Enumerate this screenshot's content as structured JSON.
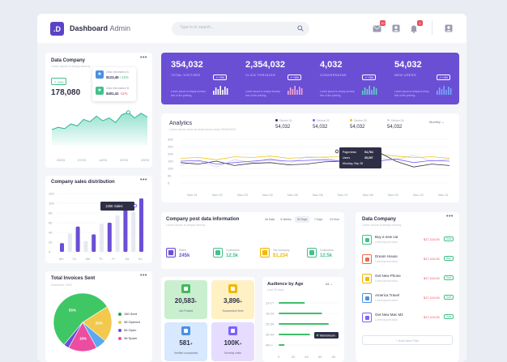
{
  "header": {
    "logo_text": ".D",
    "title_bold": "Dashboard",
    "title_light": "Admin",
    "search_placeholder": "Type in to search...",
    "badge_mail": "10",
    "badge_bell": "2"
  },
  "data_company_chart": {
    "title": "Data Company",
    "subtitle": "Lorem ipsum is simply dummy",
    "chip": "23%",
    "value": "178,080",
    "info1_title": "Data information A",
    "info1_value": "$123,45",
    "info1_delta": "+15%",
    "info2_title": "Data information B",
    "info2_value": "$401,41",
    "info2_delta": "-11%",
    "x_labels": [
      "20/03",
      "07/03",
      "14/03",
      "22/03",
      "29/03"
    ],
    "values": [
      33,
      38,
      35,
      45,
      41,
      55,
      50,
      62,
      52,
      58,
      48,
      65,
      70,
      58,
      68,
      60
    ]
  },
  "stats": [
    {
      "value": "354,032",
      "label": "TOTAL VISITORS",
      "chip": "+2%",
      "desc": "Lorem ipsum is simply dummy text of the printing",
      "color": "#ffffff"
    },
    {
      "value": "2,354,032",
      "label": "CLICK THROUGH",
      "chip": "+6%",
      "desc": "Lorem ipsum is simply dummy text of the printing",
      "color": "#f5a7d3"
    },
    {
      "value": "4,032",
      "label": "CONVERSIONS",
      "chip": "+3%",
      "desc": "Lorem ipsum is simply dummy text of the printing",
      "color": "#5fd4c4"
    },
    {
      "value": "54,032",
      "label": "NEW USERS",
      "chip": "+4%",
      "desc": "Lorem ipsum is simply dummy text of the printing",
      "color": "#7aa7ff"
    }
  ],
  "analytics": {
    "title": "Analytics",
    "subtitle": "Lorem ipsum dolor sit amet ipsum dolor 00/00/2020",
    "legend": [
      {
        "name": "Device 01",
        "value": "54,032",
        "color": "#2e2f45"
      },
      {
        "name": "Device 02",
        "value": "54,032",
        "color": "#7b61ff"
      },
      {
        "name": "Device 03",
        "value": "54,032",
        "color": "#f0c419"
      },
      {
        "name": "Device 04",
        "value": "54,032",
        "color": "#d4d5e0"
      }
    ],
    "period": "Monthly",
    "tooltip": [
      {
        "label": "Pageviews",
        "value": "54,764"
      },
      {
        "label": "Users",
        "value": "35,097"
      },
      {
        "label": "Monday, Sep 26",
        "value": ""
      }
    ],
    "y_labels": [
      "300",
      "250",
      "200",
      "150",
      "100",
      "50",
      "0"
    ],
    "x_labels": [
      "Nov 01",
      "Nov 02",
      "Nov 03",
      "Nov 04",
      "Nov 05",
      "Nov 06",
      "Nov 07",
      "Nov 08",
      "Nov 09",
      "Nov 10",
      "Nov 11"
    ]
  },
  "sales": {
    "title": "Company sales distribution",
    "tooltip": "125K Sales",
    "y_labels": [
      "120",
      "100",
      "80",
      "60",
      "40",
      "20",
      "0"
    ],
    "days": [
      "Mo",
      "Tu",
      "We",
      "Th",
      "Fr",
      "Sa",
      "Su"
    ],
    "purple": [
      18,
      52,
      36,
      60,
      95,
      110
    ],
    "grey": [
      38,
      22,
      58,
      75,
      82
    ]
  },
  "company_post": {
    "title": "Company post data information",
    "subtitle": "Lorem ipsum is simply dummy",
    "filters": [
      "All Data",
      "6 Weeks",
      "30 Days",
      "7 Days",
      "24 Hour"
    ],
    "metrics": [
      {
        "label": "Sales",
        "value": "245k",
        "bg": "#ebe6ff",
        "fg": "#6a4fd5"
      },
      {
        "label": "Customers",
        "value": "12.5k",
        "bg": "#ffffff",
        "fg": "#44c08a"
      },
      {
        "label": "Tax company",
        "value": "$1,234",
        "bg": "#fff5d6",
        "fg": "#f2b705"
      },
      {
        "label": "Customers",
        "value": "12.5k",
        "bg": "#ffffff",
        "fg": "#44c08a"
      }
    ]
  },
  "invoices": {
    "title": "Total Invoices Sent",
    "subtitle": "December 2024",
    "legend": [
      {
        "label": "150 Sent",
        "color": "#2f9e44"
      },
      {
        "label": "38 Opened",
        "color": "#f2c94c"
      },
      {
        "label": "56 Open",
        "color": "#6b4fd6"
      },
      {
        "label": "38 Spam",
        "color": "#ec4da0"
      }
    ],
    "slices": [
      {
        "label": "55%",
        "value": 55,
        "color": "#3fc765"
      },
      {
        "label": "20%",
        "value": 20,
        "color": "#f2c94c"
      },
      {
        "label": "",
        "value": 6,
        "color": "#5aa9f0"
      },
      {
        "label": "16%",
        "value": 16,
        "color": "#ec4da0"
      },
      {
        "label": "",
        "value": 3,
        "color": "#6b4fd6"
      }
    ]
  },
  "tiles": [
    {
      "value": "20,583",
      "suffix": "+",
      "label": "Job Posted",
      "bg": "#c9efcf",
      "icon": "#43b860"
    },
    {
      "value": "3,896",
      "suffix": "+",
      "label": "Successful Hires",
      "bg": "#fff1c4",
      "icon": "#f2b705"
    },
    {
      "value": "581",
      "suffix": "+",
      "label": "Verified companies",
      "bg": "#d7e8ff",
      "icon": "#4a90e2"
    },
    {
      "value": "100K",
      "suffix": "+",
      "label": "Monthly visits",
      "bg": "#e6dcff",
      "icon": "#7b61ff"
    }
  ],
  "audience": {
    "title": "Audience by Age",
    "subtitle": "Last 30 days",
    "filter": "All",
    "ages": [
      "13-17",
      "18-24",
      "25-34",
      "35-44",
      "45++"
    ],
    "values": [
      35,
      58,
      67,
      42,
      8
    ],
    "x_labels": [
      "0",
      "20",
      "40",
      "60",
      "80"
    ],
    "tooltip": "Mainstream"
  },
  "company_list": {
    "title": "Data Company",
    "subtitle": "Lorem ipsum is simply dummy",
    "items": [
      {
        "name": "Buy a new car",
        "desc": "Lorem ipsum dolor",
        "price": "$17,110.00",
        "tag": "Sale",
        "color": "#44c08a"
      },
      {
        "name": "Dream House",
        "desc": "Lorem ipsum dolor",
        "price": "$17,110.00",
        "tag": "Buy",
        "color": "#ec6b4d"
      },
      {
        "name": "Get New Phone",
        "desc": "Lorem ipsum dolor",
        "price": "$17,110.00",
        "tag": "Sale",
        "color": "#f2b705"
      },
      {
        "name": "America Travel",
        "desc": "Lorem ipsum dolor",
        "price": "$17,110.00",
        "tag": "Sale",
        "color": "#4a90e2"
      },
      {
        "name": "Get New Mac M2",
        "desc": "Lorem ipsum dolor",
        "price": "$17,110.00",
        "tag": "Sale",
        "color": "#7b61ff"
      }
    ],
    "add_label": "+ Add New Plan"
  }
}
